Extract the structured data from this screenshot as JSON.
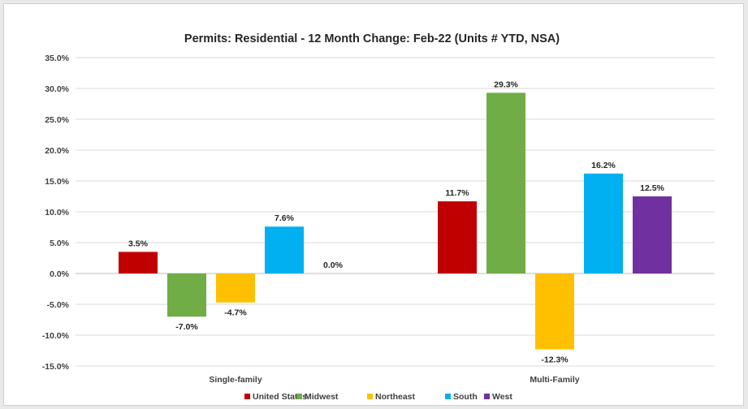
{
  "chart_data": {
    "type": "bar",
    "title": "Permits: Residential - 12 Month Change:  Feb-22 (Units # YTD, NSA)",
    "categories": [
      "Single-family",
      "Multi-Family"
    ],
    "series": [
      {
        "name": "United States",
        "color": "#c00000",
        "values": [
          3.5,
          11.7
        ],
        "labels": [
          "3.5%",
          "11.7%"
        ]
      },
      {
        "name": "Midwest",
        "color": "#70ad47",
        "values": [
          -7.0,
          29.3
        ],
        "labels": [
          "-7.0%",
          "29.3%"
        ]
      },
      {
        "name": "Northeast",
        "color": "#ffc000",
        "values": [
          -4.7,
          -12.3
        ],
        "labels": [
          "-4.7%",
          "-12.3%"
        ]
      },
      {
        "name": "South",
        "color": "#00b0f0",
        "values": [
          7.6,
          16.2
        ],
        "labels": [
          "7.6%",
          "16.2%"
        ]
      },
      {
        "name": "West",
        "color": "#7030a0",
        "values": [
          0.0,
          12.5
        ],
        "labels": [
          "0.0%",
          "12.5%"
        ]
      }
    ],
    "ylim": [
      -15,
      35
    ],
    "yticks": [
      35,
      30,
      25,
      20,
      15,
      10,
      5,
      0,
      -5,
      -10,
      -15
    ],
    "ytick_labels": [
      "35.0%",
      "30.0%",
      "25.0%",
      "20.0%",
      "15.0%",
      "10.0%",
      "5.0%",
      "0.0%",
      "-5.0%",
      "-10.0%",
      "-15.0%"
    ],
    "grid": true,
    "legend_position": "bottom"
  }
}
